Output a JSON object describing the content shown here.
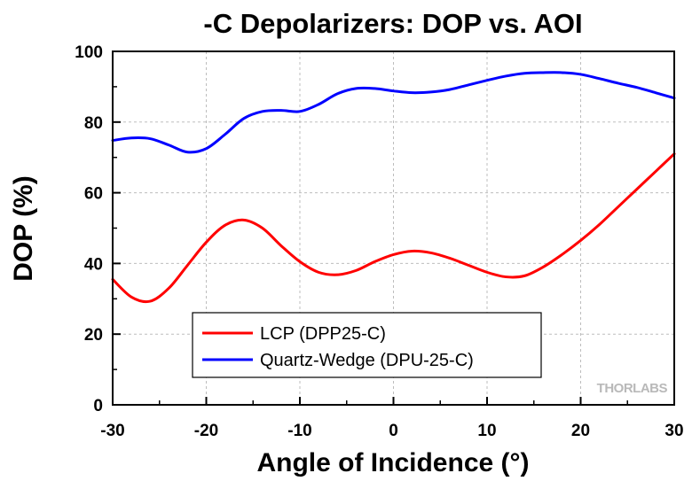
{
  "chart_data": {
    "type": "line",
    "title": "-C Depolarizers: DOP vs. AOI",
    "xlabel": "Angle of Incidence (°)",
    "ylabel": "DOP (%)",
    "xlim": [
      -30,
      30
    ],
    "ylim": [
      0,
      100
    ],
    "xticks": [
      -30,
      -20,
      -10,
      0,
      10,
      20,
      30
    ],
    "yticks": [
      0,
      20,
      40,
      60,
      80,
      100
    ],
    "grid": true,
    "legend_position": "bottom-center",
    "watermark": "THORLABS",
    "series": [
      {
        "name": "LCP (DPP25-C)",
        "color": "#ff0000",
        "x": [
          -30,
          -28,
          -26,
          -24,
          -22,
          -20,
          -18,
          -16,
          -14,
          -12,
          -10,
          -8,
          -6,
          -4,
          -2,
          0,
          2,
          4,
          6,
          8,
          10,
          12,
          14,
          16,
          18,
          20,
          22,
          24,
          26,
          28,
          30
        ],
        "y": [
          35.5,
          30.5,
          29.3,
          33,
          39.5,
          46,
          50.8,
          52.3,
          50,
          45,
          40.5,
          37.5,
          36.8,
          38,
          40.5,
          42.5,
          43.5,
          43,
          41.5,
          39.5,
          37.5,
          36.2,
          36.5,
          39,
          42.5,
          46.5,
          51,
          56,
          61,
          66,
          71
        ]
      },
      {
        "name": "Quartz-Wedge (DPU-25-C)",
        "color": "#0000ff",
        "x": [
          -30,
          -28,
          -26,
          -24,
          -22,
          -20,
          -18,
          -16,
          -14,
          -12,
          -10,
          -8,
          -6,
          -4,
          -2,
          0,
          2,
          4,
          6,
          8,
          10,
          12,
          14,
          16,
          18,
          20,
          22,
          24,
          26,
          28,
          30
        ],
        "y": [
          74.8,
          75.5,
          75.3,
          73.5,
          71.5,
          72.5,
          76.5,
          81,
          83,
          83.3,
          83,
          85,
          88,
          89.5,
          89.5,
          88.8,
          88.3,
          88.5,
          89.2,
          90.5,
          91.8,
          93,
          93.8,
          94,
          94,
          93.5,
          92.3,
          91,
          89.8,
          88.3,
          86.8
        ]
      }
    ]
  }
}
